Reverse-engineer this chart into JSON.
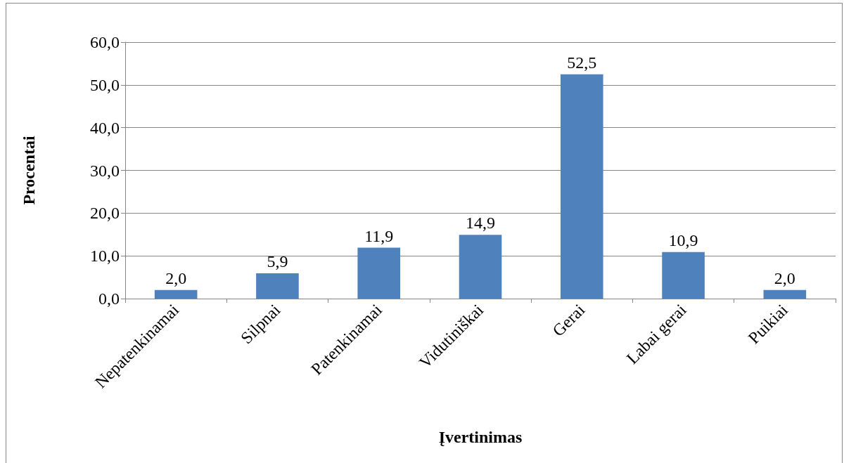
{
  "chart_data": {
    "type": "bar",
    "xlabel": "Įvertinimas",
    "ylabel": "Procentai",
    "categories": [
      "Nepatenkinamai",
      "Silpnai",
      "Patenkinamai",
      "Vidutiniškai",
      "Gerai",
      "Labai gerai",
      "Puikiai"
    ],
    "values": [
      2.0,
      5.9,
      11.9,
      14.9,
      52.5,
      10.9,
      2.0
    ],
    "value_labels": [
      "2,0",
      "5,9",
      "11,9",
      "14,9",
      "52,5",
      "10,9",
      "2,0"
    ],
    "color": "#4f81bd",
    "ylim": [
      0,
      60
    ],
    "yticks": [
      {
        "value": 0,
        "label": "0,0"
      },
      {
        "value": 10,
        "label": "10,0"
      },
      {
        "value": 20,
        "label": "20,0"
      },
      {
        "value": 30,
        "label": "30,0"
      },
      {
        "value": 40,
        "label": "40,0"
      },
      {
        "value": 50,
        "label": "50,0"
      },
      {
        "value": 60,
        "label": "60,0"
      }
    ],
    "grid": "y"
  }
}
